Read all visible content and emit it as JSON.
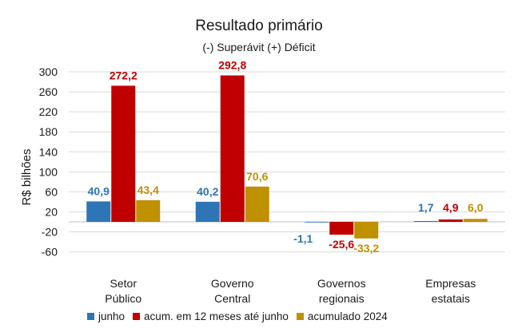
{
  "chart_data": {
    "type": "bar",
    "title": "Resultado primário",
    "subtitle": "(-) Superávit  (+) Déficit",
    "ylabel": "R$ bilhões",
    "xlabel": "",
    "ylim": [
      -80,
      300
    ],
    "yticks": [
      "300",
      "260",
      "220",
      "180",
      "140",
      "100",
      "60",
      "20",
      "-20",
      "-60"
    ],
    "yticks_values": [
      300,
      260,
      220,
      180,
      140,
      100,
      60,
      20,
      -20,
      -60
    ],
    "grid": true,
    "legend_position": "bottom",
    "categories": [
      [
        "Setor",
        "Público"
      ],
      [
        "Governo",
        "Central"
      ],
      [
        "Governos",
        "regionais"
      ],
      [
        "Empresas",
        "estatais"
      ]
    ],
    "series": [
      {
        "name": "junho",
        "color": "#2e75b6",
        "values": [
          40.9,
          40.2,
          -1.1,
          1.7
        ],
        "labels": [
          "40,9",
          "40,2",
          "-1,1",
          "1,7"
        ]
      },
      {
        "name": "acum. em 12 meses até junho",
        "color": "#c00000",
        "values": [
          272.2,
          292.8,
          -25.6,
          4.9
        ],
        "labels": [
          "272,2",
          "292,8",
          "-25,6",
          "4,9"
        ]
      },
      {
        "name": "acumulado 2024",
        "color": "#bf9000",
        "values": [
          43.4,
          70.6,
          -33.2,
          6.0
        ],
        "labels": [
          "43,4",
          "70,6",
          "-33,2",
          "6,0"
        ]
      }
    ]
  }
}
